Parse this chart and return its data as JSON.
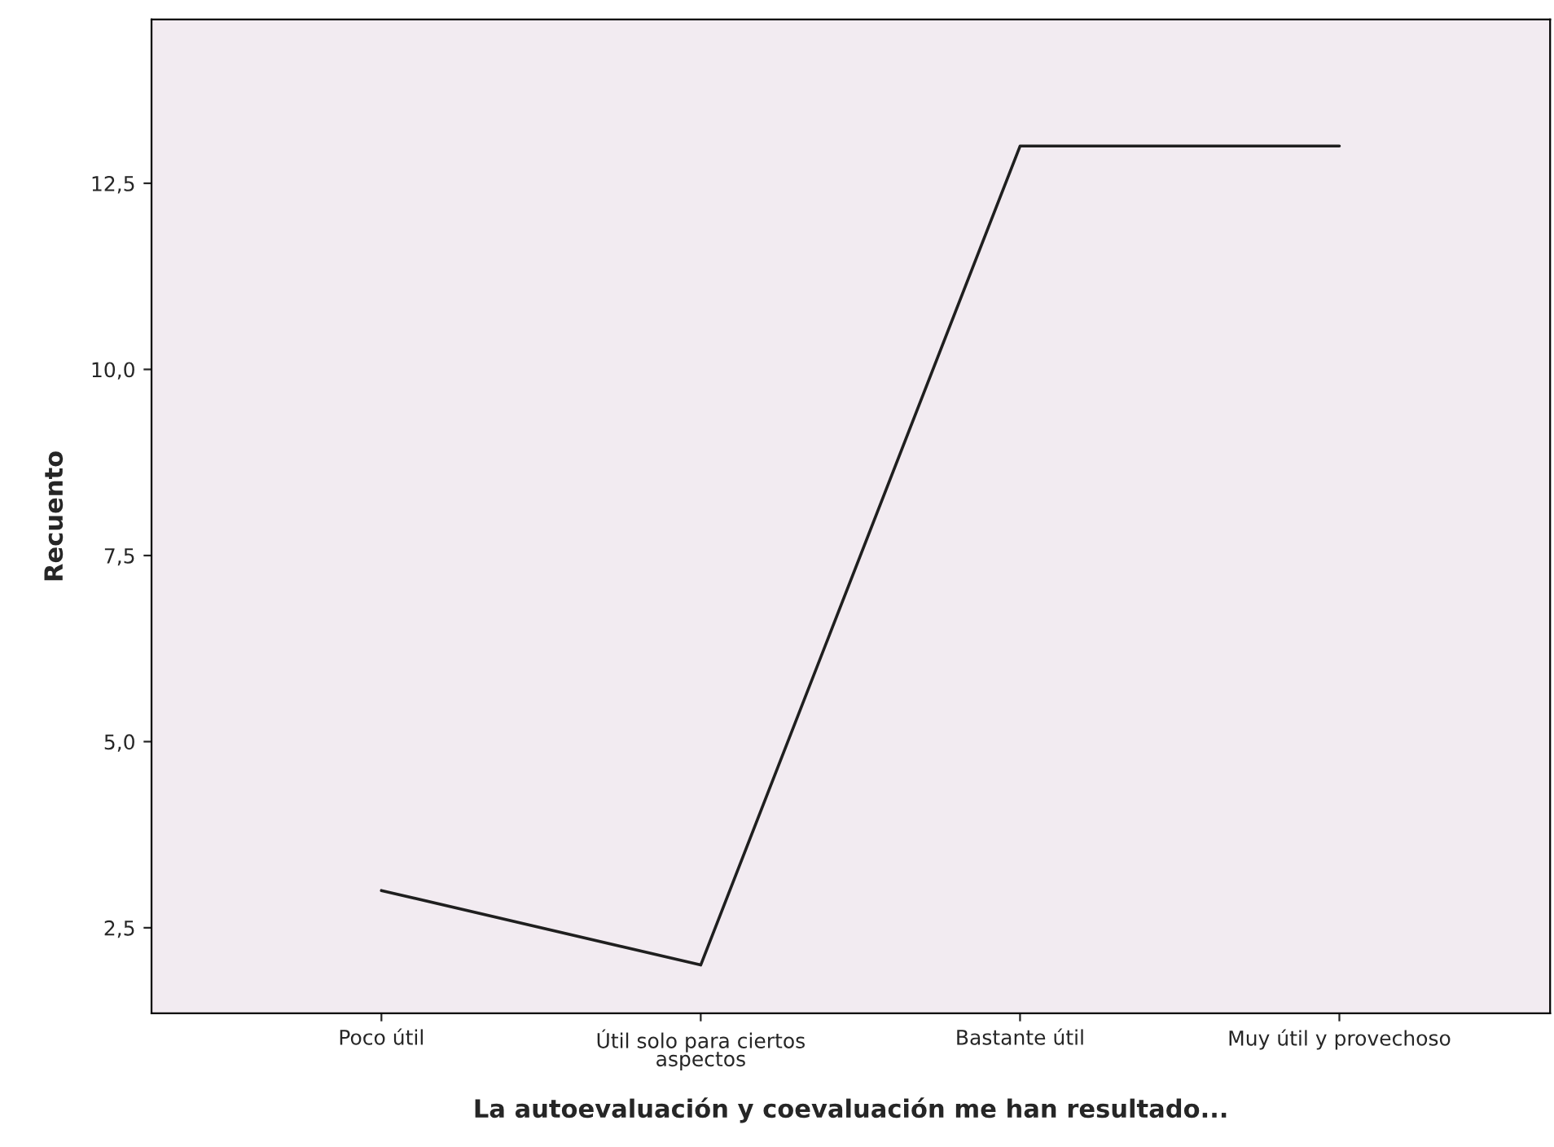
{
  "chart_data": {
    "type": "line",
    "xlabel": "La autoevaluación y coevaluación me han resultado...",
    "ylabel": "Recuento",
    "categories": [
      "Poco útil",
      "Útil solo para ciertos\naspectos",
      "Bastante útil",
      "Muy útil y provechoso"
    ],
    "series": [
      {
        "color": "#1f1f1f",
        "values": [
          3,
          2,
          13,
          13
        ]
      }
    ],
    "ylim": [
      1.35,
      14.7
    ],
    "yticks": [
      {
        "value": 2.5,
        "label": "2,5"
      },
      {
        "value": 5.0,
        "label": "5,0"
      },
      {
        "value": 7.5,
        "label": "7,5"
      },
      {
        "value": 10.0,
        "label": "10,0"
      },
      {
        "value": 12.5,
        "label": "12,5"
      }
    ],
    "grid": false,
    "legend": false,
    "marker": "none",
    "line_style": "solid"
  }
}
